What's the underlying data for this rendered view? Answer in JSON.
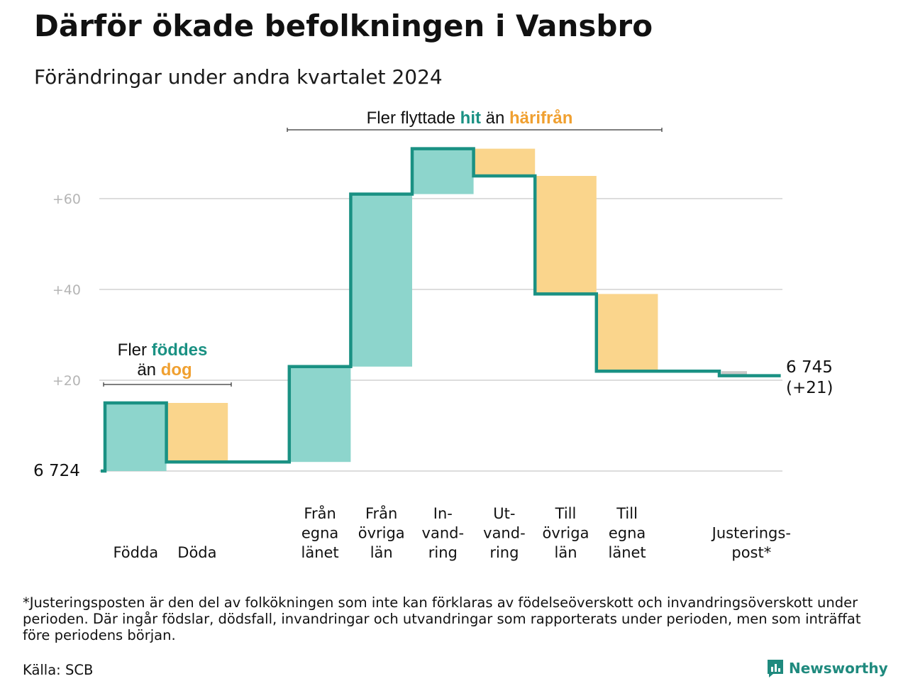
{
  "header": {
    "title": "Därför ökade befolkningen i Vansbro",
    "subtitle": "Förändringar under andra kvartalet 2024"
  },
  "annotations": {
    "top": {
      "pre": "Fler flyttade ",
      "hi1": "hit",
      "mid": " än ",
      "hi2": "härifrån"
    },
    "left": {
      "line1_pre": "Fler ",
      "line1_hi": "föddes",
      "line2_pre": "än ",
      "line2_hi": "dog"
    }
  },
  "colors": {
    "increase": "#8dd5cc",
    "decrease": "#fad58c",
    "adjust": "#c8c8c8",
    "line": "#1a9183",
    "accent_teal": "#1a9183",
    "accent_orange": "#f0a030",
    "grid": "#dddddd"
  },
  "chart_data": {
    "type": "waterfall",
    "start_label": "6 724",
    "start_value": 0,
    "end_label_line1": "6 745",
    "end_label_line2": "(+21)",
    "ylim": [
      0,
      70
    ],
    "y_ticks": [
      {
        "value": 20,
        "label": "+20"
      },
      {
        "value": 40,
        "label": "+40"
      },
      {
        "value": 60,
        "label": "+60"
      }
    ],
    "steps": [
      {
        "label_lines": [
          "Födda"
        ],
        "delta": 15,
        "kind": "increase"
      },
      {
        "label_lines": [
          "Döda"
        ],
        "delta": -13,
        "kind": "decrease"
      },
      {
        "label_lines": [],
        "delta": 0,
        "kind": "gap"
      },
      {
        "label_lines": [
          "Från",
          "egna",
          "länet"
        ],
        "delta": 21,
        "kind": "increase"
      },
      {
        "label_lines": [
          "Från",
          "övriga",
          "län"
        ],
        "delta": 38,
        "kind": "increase"
      },
      {
        "label_lines": [
          "In-",
          "vand-",
          "ring"
        ],
        "delta": 10,
        "kind": "increase"
      },
      {
        "label_lines": [
          "Ut-",
          "vand-",
          "ring"
        ],
        "delta": -6,
        "kind": "decrease"
      },
      {
        "label_lines": [
          "Till",
          "övriga",
          "län"
        ],
        "delta": -26,
        "kind": "decrease"
      },
      {
        "label_lines": [
          "Till",
          "egna",
          "länet"
        ],
        "delta": -17,
        "kind": "decrease"
      },
      {
        "label_lines": [],
        "delta": 0,
        "kind": "gap"
      },
      {
        "label_lines": [
          "Justerings-",
          "post*"
        ],
        "delta": -1,
        "kind": "adjust"
      }
    ]
  },
  "footer": {
    "footnote": "*Justeringsposten är den del av folkökningen som inte kan förklaras av födelseöverskott och invandringsöverskott under perioden. Där ingår födslar, dödsfall, invandringar och utvandringar som rapporterats under perioden, men som inträffat före periodens början.",
    "source": "Källa: SCB",
    "brand": "Newsworthy",
    "brand_icon": "newsworthy-logo-icon"
  }
}
